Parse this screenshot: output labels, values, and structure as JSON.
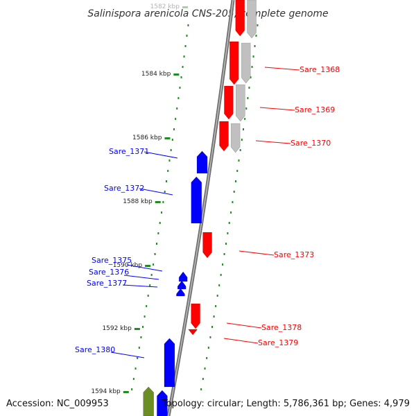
{
  "title": "Salinispora arenicola CNS-205, complete genome",
  "footer": {
    "accession": "Accession: NC_009953",
    "summary": "Topology: circular; Length: 5,786,361 bp; Genes: 4,979"
  },
  "colors": {
    "forward": "#ff0000",
    "reverse": "#0000ff",
    "other": "#c0c0c0",
    "green_gene": "#6b8e23",
    "tick": "#228b22",
    "backbone": "#8a8a8a"
  },
  "ticks": [
    {
      "label": "1582 kbp",
      "faded": true
    },
    {
      "label": "1584 kbp"
    },
    {
      "label": "1586 kbp"
    },
    {
      "label": "1588 kbp"
    },
    {
      "label": "1590 kbp"
    },
    {
      "label": "1592 kbp"
    },
    {
      "label": "1594 kbp"
    }
  ],
  "genes": [
    {
      "label": "Sare_1368",
      "strand": "forward"
    },
    {
      "label": "Sare_1369",
      "strand": "forward"
    },
    {
      "label": "Sare_1370",
      "strand": "forward"
    },
    {
      "label": "Sare_1371",
      "strand": "reverse"
    },
    {
      "label": "Sare_1372",
      "strand": "reverse"
    },
    {
      "label": "Sare_1373",
      "strand": "forward"
    },
    {
      "label": "Sare_1375",
      "strand": "reverse"
    },
    {
      "label": "Sare_1376",
      "strand": "reverse"
    },
    {
      "label": "Sare_1377",
      "strand": "reverse"
    },
    {
      "label": "Sare_1378",
      "strand": "forward"
    },
    {
      "label": "Sare_1379",
      "strand": "forward"
    },
    {
      "label": "Sare_1380",
      "strand": "reverse"
    }
  ]
}
